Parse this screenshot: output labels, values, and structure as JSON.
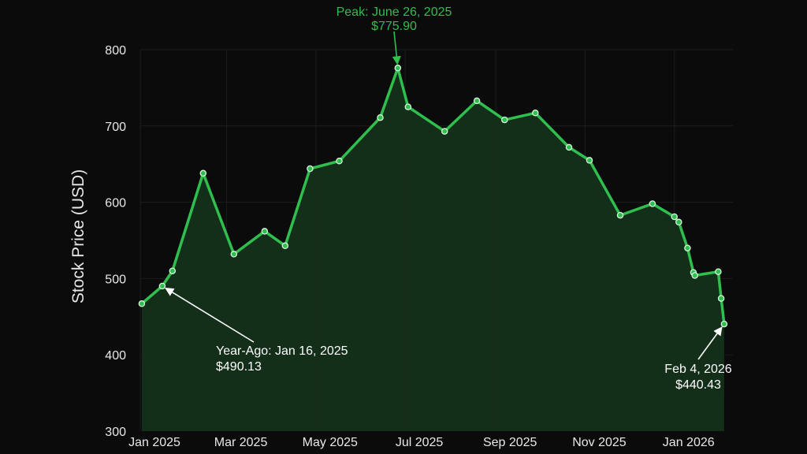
{
  "chart_data": {
    "type": "area",
    "title": "",
    "xlabel": "",
    "ylabel": "Stock Price (USD)",
    "ylim": [
      300,
      800
    ],
    "xlim": [
      "2025-01-01",
      "2026-02-10"
    ],
    "yticks": [
      300,
      400,
      500,
      600,
      700,
      800
    ],
    "xticks": [
      {
        "date": "2025-01-01",
        "label": "Jan 2025"
      },
      {
        "date": "2025-03-01",
        "label": "Mar 2025"
      },
      {
        "date": "2025-05-01",
        "label": "May 2025"
      },
      {
        "date": "2025-07-01",
        "label": "Jul 2025"
      },
      {
        "date": "2025-09-01",
        "label": "Sep 2025"
      },
      {
        "date": "2025-11-01",
        "label": "Nov 2025"
      },
      {
        "date": "2026-01-01",
        "label": "Jan 2026"
      }
    ],
    "grid": true,
    "colors": {
      "line": "#2fbf4f",
      "fill": "#14301a",
      "marker_stroke": "#d8f5dc",
      "marker_fill": "#2fbf4f",
      "peak_annotation": "#2fbf4f",
      "other_annotation": "#ffffff",
      "grid": "#1c1c1c",
      "background": "#0b0b0b"
    },
    "series": [
      {
        "name": "",
        "x": [
          "2025-01-02",
          "2025-01-16",
          "2025-01-23",
          "2025-02-13",
          "2025-03-06",
          "2025-03-27",
          "2025-04-10",
          "2025-04-27",
          "2025-05-17",
          "2025-06-14",
          "2025-06-26",
          "2025-07-03",
          "2025-07-28",
          "2025-08-19",
          "2025-09-07",
          "2025-09-28",
          "2025-10-21",
          "2025-11-04",
          "2025-11-25",
          "2025-12-17",
          "2026-01-01",
          "2026-01-04",
          "2026-01-10",
          "2026-01-14",
          "2026-01-15",
          "2026-01-31",
          "2026-02-02",
          "2026-02-04"
        ],
        "values": [
          467,
          490.13,
          510,
          638,
          532,
          562,
          543,
          644,
          654,
          711,
          775.9,
          725,
          693,
          733,
          708,
          717,
          672,
          655,
          583,
          598,
          581,
          574,
          540,
          508,
          504,
          509,
          474,
          440.43
        ]
      }
    ],
    "annotations": [
      {
        "id": "peak",
        "text_lines": [
          "Peak: June 26, 2025",
          "$775.90"
        ],
        "point_date": "2025-06-26",
        "point_value": 775.9
      },
      {
        "id": "year-ago",
        "text_lines": [
          "Year-Ago: Jan 16, 2025",
          "$490.13"
        ],
        "point_date": "2025-01-16",
        "point_value": 490.13
      },
      {
        "id": "latest",
        "text_lines": [
          "Feb 4, 2026",
          "$440.43"
        ],
        "point_date": "2026-02-04",
        "point_value": 440.43
      }
    ]
  }
}
